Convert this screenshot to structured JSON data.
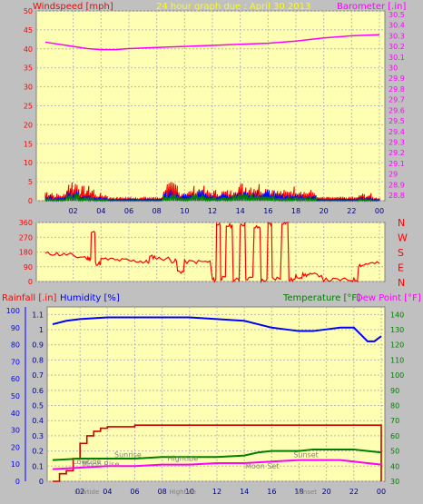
{
  "header": {
    "windspeed_label": "Windspeed [mph]",
    "title": "24 hour graph due : April 30 2013",
    "barometer_label": "Barometer [.in]"
  },
  "colors": {
    "plot_bg": "#ffffb4",
    "red": "#ff0000",
    "blue": "#0000ff",
    "green": "#008000",
    "magenta": "#ff00ff",
    "darkred": "#cc0000",
    "grid": "#b8b8b8",
    "axis_text": "#000000",
    "frame": "#c0c0c0"
  },
  "chart_data": [
    {
      "type": "line",
      "name": "wind-barometer",
      "x_ticks": [
        "02",
        "04",
        "06",
        "08",
        "10",
        "12",
        "14",
        "16",
        "18",
        "20",
        "22",
        "00"
      ],
      "y_left_ticks": [
        "0",
        "5",
        "10",
        "15",
        "20",
        "25",
        "30",
        "35",
        "40",
        "45",
        "50"
      ],
      "y_left_lim": [
        0,
        50
      ],
      "y_right_ticks": [
        "28.8",
        "28.9",
        "29",
        "29.1",
        "29.2",
        "29.3",
        "29.4",
        "29.5",
        "29.6",
        "29.7",
        "29.8",
        "29.9",
        "30",
        "30.1",
        "30.2",
        "30.3",
        "30.4",
        "30.5"
      ],
      "y_right_lim": [
        28.8,
        30.5
      ],
      "barometer": {
        "x": [
          0,
          2,
          3,
          4,
          5,
          6,
          8,
          10,
          12,
          14,
          16,
          18,
          20,
          22,
          24
        ],
        "y": [
          30.24,
          30.2,
          30.18,
          30.17,
          30.17,
          30.18,
          30.19,
          30.2,
          30.21,
          30.22,
          30.23,
          30.25,
          30.28,
          30.3,
          30.31
        ]
      },
      "wind_gust_max": [
        3,
        2,
        6,
        4,
        2,
        1,
        1,
        1,
        1,
        5,
        3,
        4,
        3,
        3,
        5,
        5,
        4,
        3,
        4,
        3,
        1,
        1,
        1,
        2,
        1
      ],
      "wind_avg_max": [
        1.5,
        1,
        3,
        2,
        1,
        0.5,
        0.5,
        0.5,
        0.5,
        3,
        2,
        3,
        2,
        2,
        3,
        3,
        3,
        2,
        2,
        2,
        0.5,
        0.5,
        0.5,
        1,
        0.5
      ],
      "wind_low_max": [
        1,
        0.5,
        2,
        1,
        0.5,
        0,
        0,
        0,
        0,
        2,
        1,
        2,
        1,
        1,
        2,
        2,
        2,
        1,
        1,
        1,
        0,
        0,
        0,
        0.5,
        0
      ]
    },
    {
      "type": "line",
      "name": "wind-direction",
      "x_ticks": [
        "02",
        "04",
        "06",
        "08",
        "10",
        "12",
        "14",
        "16",
        "18",
        "20",
        "22",
        "00"
      ],
      "y_ticks": [
        "0",
        "90",
        "180",
        "270",
        "360"
      ],
      "y_lim": [
        0,
        360
      ],
      "compass_labels": [
        "N",
        "W",
        "S",
        "E",
        "N"
      ],
      "direction": {
        "x": [
          0,
          1,
          2,
          3,
          3.3,
          3.6,
          4,
          5,
          6,
          7,
          7.5,
          8,
          9,
          9.5,
          10,
          11,
          12,
          12.3,
          12.6,
          13,
          13.5,
          14,
          14.4,
          15,
          15.5,
          16,
          16.3,
          17,
          17.5,
          18,
          18.5,
          19,
          20,
          21,
          22,
          22.5,
          23,
          24
        ],
        "y": [
          170,
          165,
          150,
          140,
          300,
          110,
          135,
          130,
          125,
          120,
          150,
          140,
          125,
          60,
          120,
          120,
          10,
          350,
          20,
          340,
          10,
          350,
          20,
          330,
          5,
          350,
          20,
          360,
          10,
          30,
          40,
          40,
          10,
          10,
          10,
          100,
          110,
          110
        ]
      }
    },
    {
      "type": "line",
      "name": "rain-humidity-temperature",
      "header_left_rain": "Rainfall [.in]",
      "header_left_humidity": "Humidity [%]",
      "header_right_temp": "Temperature [°F]",
      "header_right_dew": "Dew Point [°F]",
      "x_ticks": [
        "02",
        "04",
        "06",
        "08",
        "10",
        "12",
        "14",
        "16",
        "18",
        "20",
        "22",
        "00"
      ],
      "y_outer_ticks": [
        "0",
        "10",
        "20",
        "30",
        "40",
        "50",
        "60",
        "70",
        "80",
        "90",
        "100"
      ],
      "y_outer_lim": [
        0,
        100
      ],
      "y_inner_ticks": [
        "0",
        "0.1",
        "0.2",
        "0.3",
        "0.4",
        "0.5",
        "0.6",
        "0.7",
        "0.8",
        "0.9",
        "1",
        "1.1"
      ],
      "y_inner_lim": [
        0,
        1.15
      ],
      "y_right_ticks": [
        "30",
        "40",
        "50",
        "60",
        "70",
        "80",
        "90",
        "100",
        "110",
        "120",
        "130",
        "140"
      ],
      "y_right_lim": [
        30,
        145
      ],
      "humidity": {
        "x": [
          0,
          1,
          2,
          4,
          6,
          10,
          12,
          14,
          16,
          17,
          18,
          19,
          20,
          21,
          22,
          22.5,
          23,
          23.5,
          24
        ],
        "y": [
          92,
          94,
          95,
          96,
          96,
          96,
          95,
          94,
          90,
          89,
          88,
          88,
          89,
          90,
          90,
          86,
          82,
          82,
          85
        ]
      },
      "rainfall": {
        "x": [
          0,
          0.5,
          1,
          1.5,
          2,
          2.5,
          3,
          3.5,
          4,
          5,
          6,
          24,
          24
        ],
        "y": [
          0.0,
          0.05,
          0.07,
          0.15,
          0.25,
          0.3,
          0.33,
          0.35,
          0.36,
          0.36,
          0.37,
          0.37,
          0.0
        ]
      },
      "temperature": {
        "x": [
          0,
          2,
          4,
          6,
          8,
          10,
          12,
          14,
          15,
          16,
          17,
          18,
          19,
          20,
          21,
          22,
          23,
          24
        ],
        "y": [
          44,
          45,
          45,
          45,
          46,
          46,
          46,
          47,
          49,
          50,
          50,
          50,
          51,
          51,
          51,
          51,
          50,
          49
        ]
      },
      "dew_point": {
        "x": [
          0,
          2,
          4,
          6,
          8,
          10,
          12,
          14,
          16,
          18,
          20,
          21,
          22,
          23,
          24
        ],
        "y": [
          38,
          39,
          40,
          40,
          41,
          41,
          42,
          42,
          43,
          44,
          44,
          44,
          43,
          42,
          41
        ]
      },
      "annotations": [
        {
          "text": "Lowtide",
          "x": 2.5,
          "y": 10
        },
        {
          "text": "Moon Rise",
          "x": 3.5,
          "y": 8.5
        },
        {
          "text": "Sunrise",
          "x": 5.5,
          "y": 14
        },
        {
          "text": "Hightide",
          "x": 9.5,
          "y": 12
        },
        {
          "text": "Moon Set",
          "x": 15.3,
          "y": 7.5
        },
        {
          "text": "Sunset",
          "x": 18.5,
          "y": 14
        }
      ],
      "bottom_labels": [
        {
          "text": "Lowtide",
          "x": 2.5
        },
        {
          "text": "Hightide",
          "x": 9.5
        },
        {
          "text": "Sunset",
          "x": 18.5
        }
      ]
    }
  ]
}
